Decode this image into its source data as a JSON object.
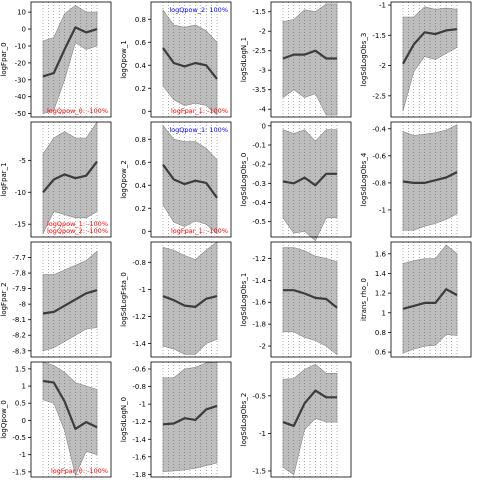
{
  "colors": {
    "band": "#bdbdbd",
    "line": "#3c3c3c",
    "pos": "#0000ff",
    "neg": "#ff0000",
    "frame": "#000000"
  },
  "chart_data": [
    {
      "type": "area",
      "ylabel": "logFpar_0",
      "yticks": [
        10,
        0,
        -10,
        -20,
        -30,
        -40,
        -50
      ],
      "ylim": [
        -52,
        16
      ],
      "grid": "dotted-vertical",
      "x": [
        0,
        1,
        2,
        3,
        4,
        5
      ],
      "lo": [
        -50,
        -48,
        -30,
        -8,
        -12,
        -10
      ],
      "hi": [
        -7,
        -5,
        9,
        14,
        10,
        10
      ],
      "mid": [
        -28,
        -26,
        -12,
        1,
        -2,
        0
      ],
      "annotations": [
        {
          "text": "logQpow_0: -100%",
          "color": "neg"
        }
      ]
    },
    {
      "type": "area",
      "ylabel": "logQpow_1",
      "yticks": [
        0.8,
        0.6,
        0.4,
        0.2,
        0.0
      ],
      "ylim": [
        -0.05,
        0.95
      ],
      "grid": "dotted-vertical",
      "x": [
        0,
        1,
        2,
        3,
        4,
        5
      ],
      "lo": [
        0.22,
        0.1,
        0.05,
        0.07,
        0.05,
        -0.03
      ],
      "hi": [
        0.88,
        0.75,
        0.73,
        0.75,
        0.7,
        0.6
      ],
      "mid": [
        0.55,
        0.42,
        0.39,
        0.42,
        0.4,
        0.28
      ],
      "annotations": [
        {
          "text": "logQpow_2: 100%",
          "color": "pos"
        },
        {
          "text": "logFpar_1: -100%",
          "color": "neg"
        }
      ]
    },
    {
      "type": "area",
      "ylabel": "logSdLogN_1",
      "yticks": [
        -1.5,
        -2.0,
        -2.5,
        -3.0,
        -3.5,
        -4.0
      ],
      "ylim": [
        -4.2,
        -1.25
      ],
      "grid": "dotted-vertical",
      "x": [
        0,
        1,
        2,
        3,
        4,
        5
      ],
      "lo": [
        -3.7,
        -3.5,
        -3.7,
        -3.6,
        -4.15,
        -4.15
      ],
      "hi": [
        -1.75,
        -1.7,
        -1.45,
        -1.5,
        -1.3,
        -1.3
      ],
      "mid": [
        -2.7,
        -2.6,
        -2.6,
        -2.5,
        -2.7,
        -2.7
      ],
      "annotations": []
    },
    {
      "type": "area",
      "ylabel": "logSdLogObs_3",
      "yticks": [
        -1.0,
        -1.5,
        -2.0,
        -2.5
      ],
      "ylim": [
        -2.85,
        -0.95
      ],
      "grid": "dotted-vertical",
      "x": [
        0,
        1,
        2,
        3,
        4,
        5
      ],
      "lo": [
        -2.75,
        -2.1,
        -1.85,
        -1.9,
        -1.8,
        -1.7
      ],
      "hi": [
        -1.2,
        -1.2,
        -1.03,
        -1.07,
        -1.05,
        -1.07
      ],
      "mid": [
        -1.97,
        -1.65,
        -1.45,
        -1.48,
        -1.42,
        -1.4
      ],
      "annotations": []
    },
    {
      "type": "area",
      "ylabel": "logFpar_1",
      "yticks": [
        -5,
        -10,
        -15
      ],
      "ylim": [
        -17,
        1
      ],
      "grid": "dotted-vertical",
      "x": [
        0,
        1,
        2,
        3,
        4,
        5
      ],
      "lo": [
        -16.5,
        -13,
        -13.5,
        -14,
        -14,
        -13
      ],
      "hi": [
        -4,
        -1.5,
        -0.5,
        -1.5,
        -1.5,
        1
      ],
      "mid": [
        -10,
        -8,
        -7.2,
        -7.8,
        -7.4,
        -5.2
      ],
      "annotations": [
        {
          "text": "logQpow_1: -100%",
          "color": "neg"
        },
        {
          "text": "logQpow_2: -100%",
          "color": "neg"
        }
      ]
    },
    {
      "type": "area",
      "ylabel": "logQpow_2",
      "yticks": [
        0.8,
        0.6,
        0.4,
        0.2,
        0.0
      ],
      "ylim": [
        -0.05,
        0.95
      ],
      "grid": "dotted-vertical",
      "x": [
        0,
        1,
        2,
        3,
        4,
        5
      ],
      "lo": [
        0.23,
        0.08,
        0.04,
        0.09,
        0.06,
        -0.02
      ],
      "hi": [
        0.92,
        0.8,
        0.78,
        0.78,
        0.72,
        0.62
      ],
      "mid": [
        0.58,
        0.45,
        0.41,
        0.44,
        0.42,
        0.29
      ],
      "annotations": [
        {
          "text": "logQpow_1: 100%",
          "color": "pos"
        },
        {
          "text": "logFpar_1: -100%",
          "color": "neg"
        }
      ]
    },
    {
      "type": "area",
      "ylabel": "logSdLogObs_0",
      "yticks": [
        0.0,
        -0.1,
        -0.2,
        -0.3,
        -0.4,
        -0.5
      ],
      "ylim": [
        -0.58,
        0.02
      ],
      "grid": "dotted-vertical",
      "x": [
        0,
        1,
        2,
        3,
        4,
        5
      ],
      "lo": [
        -0.48,
        -0.56,
        -0.55,
        -0.6,
        -0.48,
        -0.48
      ],
      "hi": [
        -0.02,
        -0.04,
        -0.02,
        -0.08,
        -0.02,
        -0.02
      ],
      "mid": [
        -0.29,
        -0.3,
        -0.27,
        -0.31,
        -0.25,
        -0.25
      ],
      "annotations": []
    },
    {
      "type": "area",
      "ylabel": "logSdLogObs_4",
      "yticks": [
        -0.4,
        -0.6,
        -0.8,
        -1.0
      ],
      "ylim": [
        -1.2,
        -0.35
      ],
      "grid": "dotted-vertical",
      "x": [
        0,
        1,
        2,
        3,
        4,
        5
      ],
      "lo": [
        -1.15,
        -1.15,
        -1.12,
        -1.1,
        -1.07,
        -1.03
      ],
      "hi": [
        -0.42,
        -0.45,
        -0.44,
        -0.43,
        -0.41,
        -0.37
      ],
      "mid": [
        -0.79,
        -0.8,
        -0.8,
        -0.78,
        -0.76,
        -0.72
      ],
      "annotations": []
    },
    {
      "type": "area",
      "ylabel": "logFpar_2",
      "yticks": [
        -7.7,
        -7.8,
        -7.9,
        -8.0,
        -8.1,
        -8.2,
        -8.3
      ],
      "ylim": [
        -8.34,
        -7.6
      ],
      "grid": "dotted-vertical",
      "x": [
        0,
        1,
        2,
        3,
        4,
        5
      ],
      "lo": [
        -8.3,
        -8.28,
        -8.24,
        -8.2,
        -8.16,
        -8.15
      ],
      "hi": [
        -7.81,
        -7.81,
        -7.78,
        -7.75,
        -7.72,
        -7.66
      ],
      "mid": [
        -8.06,
        -8.05,
        -8.01,
        -7.97,
        -7.93,
        -7.91
      ],
      "annotations": []
    },
    {
      "type": "area",
      "ylabel": "logSdLogFsta_0",
      "yticks": [
        -0.8,
        -1.0,
        -1.2,
        -1.4
      ],
      "ylim": [
        -1.5,
        -0.65
      ],
      "grid": "dotted-vertical",
      "x": [
        0,
        1,
        2,
        3,
        4,
        5
      ],
      "lo": [
        -1.42,
        -1.44,
        -1.48,
        -1.48,
        -1.4,
        -1.37
      ],
      "hi": [
        -0.69,
        -0.71,
        -0.75,
        -0.78,
        -0.71,
        -0.65
      ],
      "mid": [
        -1.05,
        -1.08,
        -1.12,
        -1.13,
        -1.07,
        -1.05
      ],
      "annotations": []
    },
    {
      "type": "area",
      "ylabel": "logSdLogObs_1",
      "yticks": [
        -1.2,
        -1.4,
        -1.6,
        -1.8,
        -2.0
      ],
      "ylim": [
        -2.1,
        -1.05
      ],
      "grid": "dotted-vertical",
      "x": [
        0,
        1,
        2,
        3,
        4,
        5
      ],
      "lo": [
        -1.87,
        -1.87,
        -1.92,
        -1.95,
        -2.0,
        -2.08
      ],
      "hi": [
        -1.1,
        -1.1,
        -1.13,
        -1.18,
        -1.2,
        -1.23
      ],
      "mid": [
        -1.49,
        -1.49,
        -1.52,
        -1.56,
        -1.57,
        -1.65
      ],
      "annotations": []
    },
    {
      "type": "area",
      "ylabel": "itrans_rho_0",
      "yticks": [
        1.6,
        1.4,
        1.2,
        1.0,
        0.8,
        0.6
      ],
      "ylim": [
        0.55,
        1.72
      ],
      "grid": "dotted-vertical",
      "x": [
        0,
        1,
        2,
        3,
        4,
        5
      ],
      "lo": [
        0.59,
        0.63,
        0.66,
        0.67,
        0.78,
        0.77
      ],
      "hi": [
        1.5,
        1.53,
        1.55,
        1.55,
        1.69,
        1.6
      ],
      "mid": [
        1.04,
        1.07,
        1.1,
        1.1,
        1.24,
        1.18
      ],
      "annotations": []
    },
    {
      "type": "area",
      "ylabel": "logQpow_0",
      "yticks": [
        1.5,
        1.0,
        0.5,
        0.0,
        -0.5,
        -1.0,
        -1.5
      ],
      "ylim": [
        -1.65,
        1.7
      ],
      "grid": "dotted-vertical",
      "x": [
        0,
        1,
        2,
        3,
        4,
        5
      ],
      "lo": [
        0.6,
        0.5,
        -0.3,
        -1.6,
        -0.9,
        -1.0
      ],
      "hi": [
        1.7,
        1.6,
        1.4,
        1.1,
        1.0,
        0.9
      ],
      "mid": [
        1.15,
        1.1,
        0.55,
        -0.25,
        -0.05,
        -0.2
      ],
      "annotations": [
        {
          "text": "logFpar_0: -100%",
          "color": "neg"
        }
      ]
    },
    {
      "type": "area",
      "ylabel": "logSdLogN_0",
      "yticks": [
        -0.6,
        -0.8,
        -1.0,
        -1.2,
        -1.4,
        -1.6,
        -1.8
      ],
      "ylim": [
        -1.83,
        -0.52
      ],
      "grid": "dotted-vertical",
      "x": [
        0,
        1,
        2,
        3,
        4,
        5
      ],
      "lo": [
        -1.77,
        -1.76,
        -1.75,
        -1.73,
        -1.7,
        -1.67
      ],
      "hi": [
        -0.7,
        -0.7,
        -0.6,
        -0.58,
        -0.53,
        -0.52
      ],
      "mid": [
        -1.23,
        -1.22,
        -1.16,
        -1.18,
        -1.06,
        -1.02
      ],
      "annotations": []
    },
    {
      "type": "area",
      "ylabel": "logSdLogObs_2",
      "yticks": [
        -0.5,
        -1.0,
        -1.5
      ],
      "ylim": [
        -1.58,
        -0.05
      ],
      "grid": "dotted-vertical",
      "x": [
        0,
        1,
        2,
        3,
        4,
        5
      ],
      "lo": [
        -1.45,
        -1.55,
        -0.95,
        -0.8,
        -0.85,
        -0.85
      ],
      "hi": [
        -0.28,
        -0.27,
        -0.15,
        -0.08,
        -0.2,
        -0.2
      ],
      "mid": [
        -0.85,
        -0.9,
        -0.6,
        -0.43,
        -0.52,
        -0.52
      ],
      "annotations": []
    }
  ]
}
